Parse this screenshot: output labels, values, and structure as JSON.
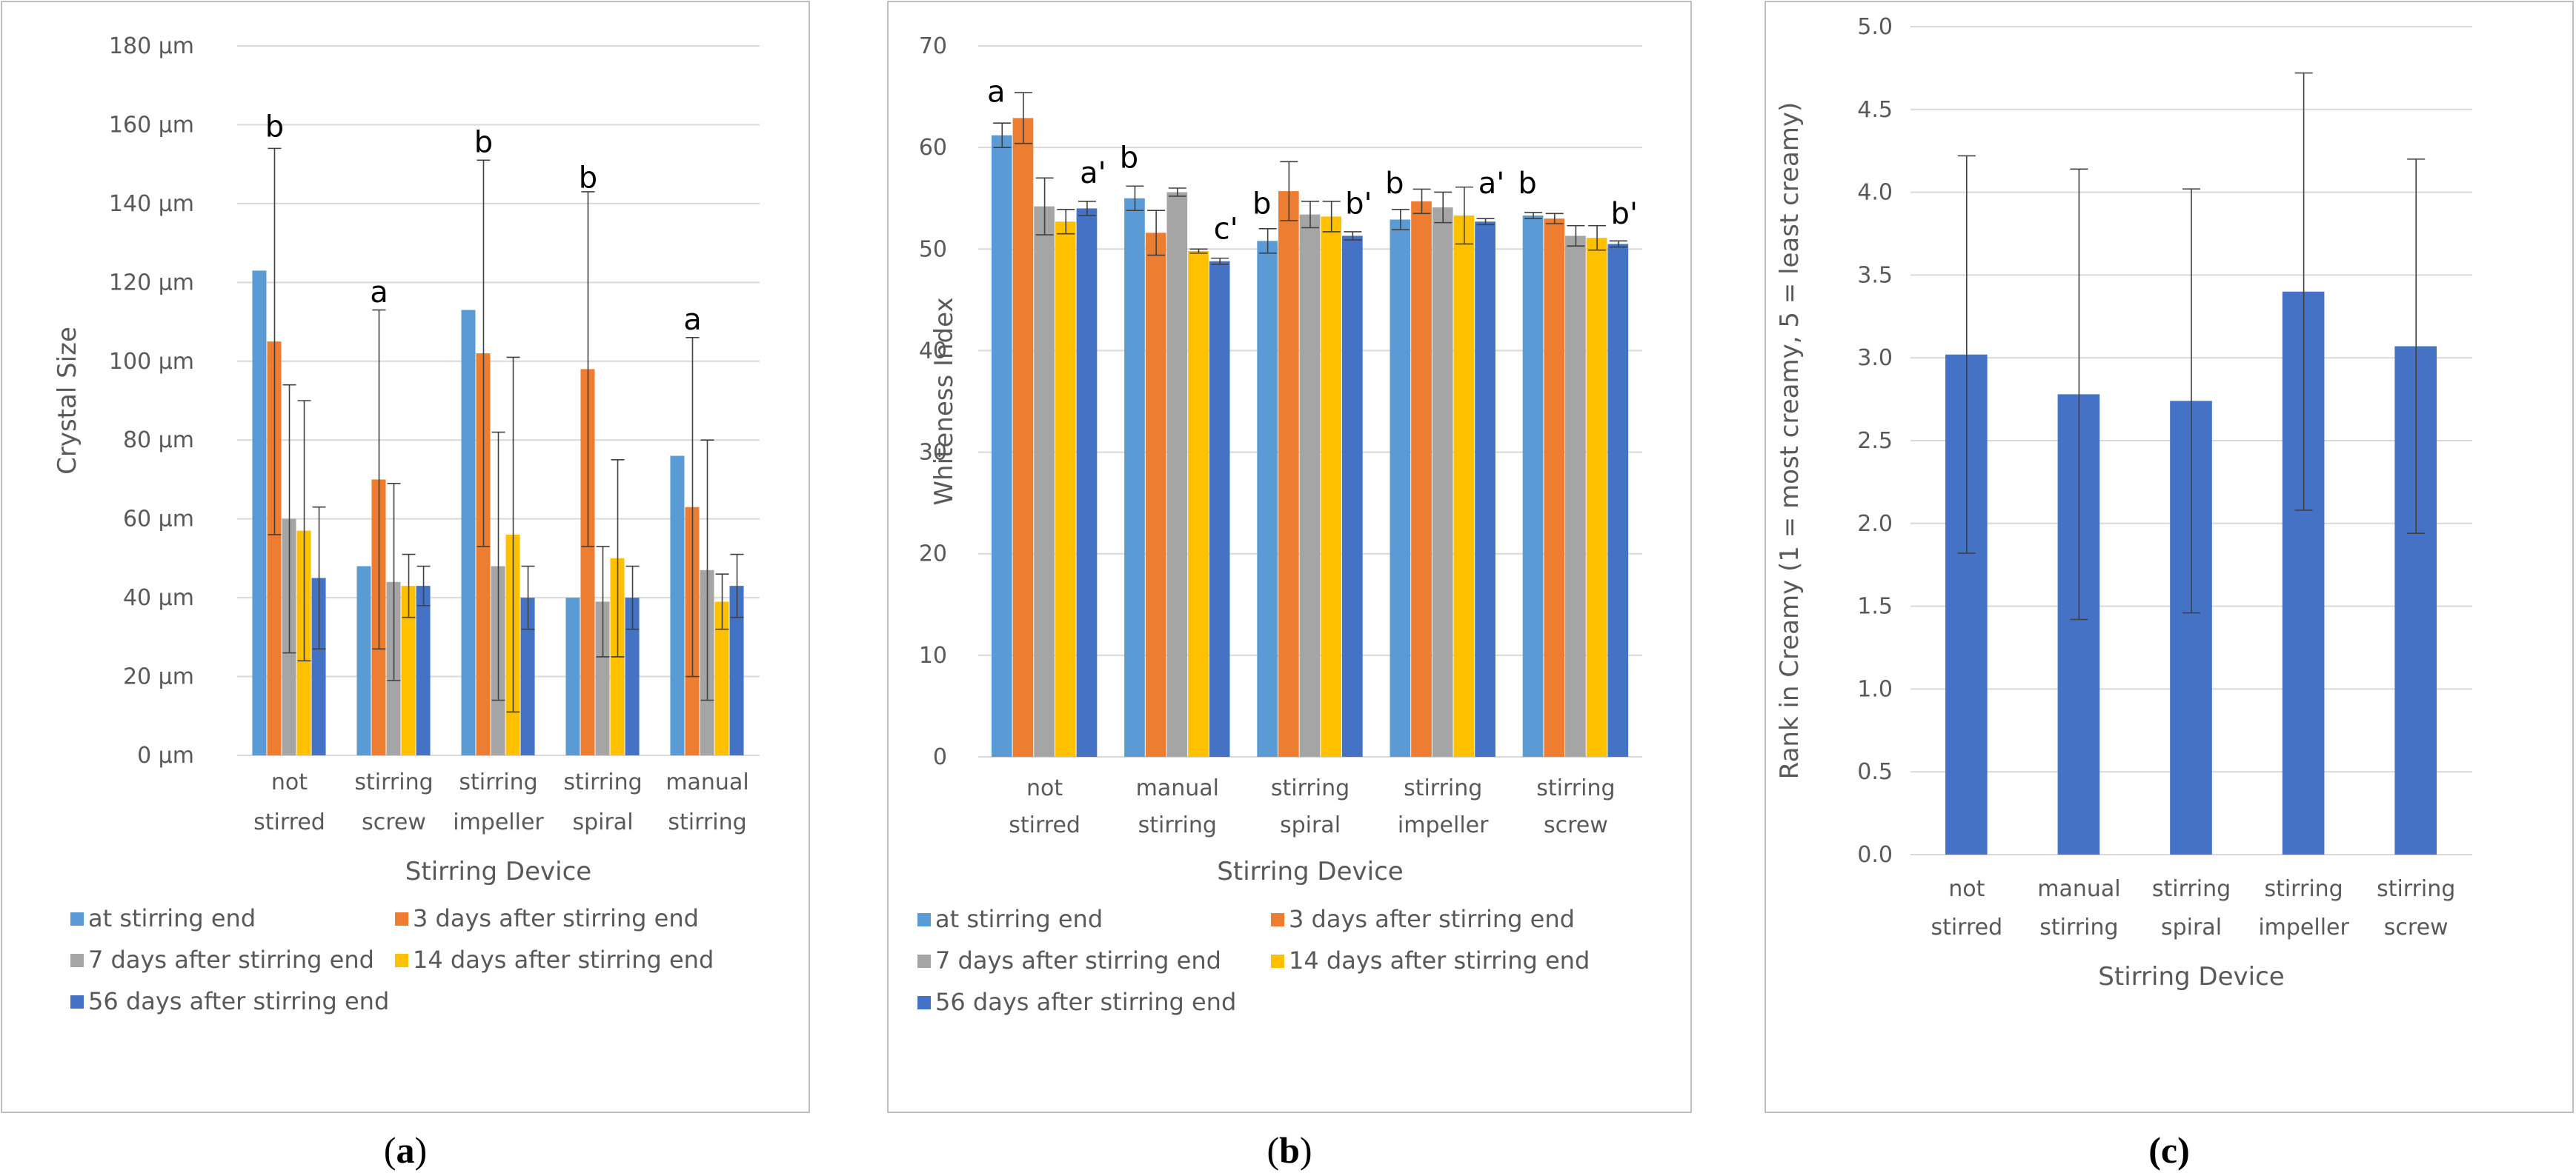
{
  "colors": {
    "series": [
      "#5b9bd5",
      "#ed7d31",
      "#a5a5a5",
      "#ffc000",
      "#4472c4"
    ],
    "single": "#4472c4",
    "grid": "#d9d9d9",
    "frame": "#bfbfbf",
    "error": "#404040",
    "text": "#595959"
  },
  "panels": {
    "a": {
      "paren_open": "(",
      "letter": "a",
      "paren_close": ")"
    },
    "b": {
      "paren_open": "(",
      "letter": "b",
      "paren_close": ")"
    },
    "c": {
      "text": "(c)"
    }
  },
  "chart_data": [
    {
      "id": "a",
      "type": "bar",
      "title": "",
      "xlabel": "Stirring Device",
      "ylabel": "Crystal Size",
      "ylim": [
        0,
        180
      ],
      "ytick_step": 20,
      "ytick_labels": [
        "0 µm",
        "20 µm",
        "40 µm",
        "60 µm",
        "80 µm",
        "100 µm",
        "120 µm",
        "140 µm",
        "160 µm",
        "180 µm"
      ],
      "categories": [
        [
          "not",
          "stirred"
        ],
        [
          "stirring",
          "screw"
        ],
        [
          "stirring",
          "impeller"
        ],
        [
          "stirring",
          "spiral"
        ],
        [
          "manual",
          "stirring"
        ]
      ],
      "legend_position": "bottom",
      "series": [
        {
          "name": "at stirring end",
          "values": [
            123,
            48,
            113,
            40,
            76
          ],
          "errors": [
            null,
            null,
            null,
            null,
            null
          ]
        },
        {
          "name": "3 days after stirring end",
          "values": [
            105,
            70,
            102,
            98,
            63
          ],
          "errors": [
            49,
            43,
            49,
            45,
            43
          ]
        },
        {
          "name": "7 days after stirring end",
          "values": [
            60,
            44,
            48,
            39,
            47
          ],
          "errors": [
            34,
            25,
            34,
            14,
            33
          ]
        },
        {
          "name": "14 days after stirring end",
          "values": [
            57,
            43,
            56,
            50,
            39
          ],
          "errors": [
            33,
            8,
            45,
            25,
            7
          ]
        },
        {
          "name": "56 days after stirring end",
          "values": [
            45,
            43,
            40,
            40,
            43
          ],
          "errors": [
            18,
            5,
            8,
            8,
            8
          ]
        }
      ],
      "annotations": [
        {
          "category": 0,
          "label": "b",
          "y": 157
        },
        {
          "category": 1,
          "label": "a",
          "y": 115
        },
        {
          "category": 2,
          "label": "b",
          "y": 153
        },
        {
          "category": 3,
          "label": "b",
          "y": 144
        },
        {
          "category": 4,
          "label": "a",
          "y": 108
        }
      ]
    },
    {
      "id": "b",
      "type": "bar",
      "title": "",
      "xlabel": "Stirring Device",
      "ylabel": "Whiteness Index",
      "ylim": [
        0,
        70
      ],
      "ytick_step": 10,
      "ytick_labels": [
        "0",
        "10",
        "20",
        "30",
        "40",
        "50",
        "60",
        "70"
      ],
      "categories": [
        [
          "not",
          "stirred"
        ],
        [
          "manual",
          "stirring"
        ],
        [
          "stirring",
          "spiral"
        ],
        [
          "stirring",
          "impeller"
        ],
        [
          "stirring",
          "screw"
        ]
      ],
      "legend_position": "bottom",
      "series": [
        {
          "name": "at stirring end",
          "values": [
            61.2,
            55.0,
            50.8,
            52.9,
            53.3
          ],
          "errors": [
            1.2,
            1.2,
            1.2,
            1.0,
            0.3
          ]
        },
        {
          "name": "3 days after stirring end",
          "values": [
            62.9,
            51.6,
            55.7,
            54.7,
            53.0
          ],
          "errors": [
            2.5,
            2.2,
            2.9,
            1.2,
            0.5
          ]
        },
        {
          "name": "7 days after stirring end",
          "values": [
            54.2,
            55.6,
            53.4,
            54.1,
            51.3
          ],
          "errors": [
            2.8,
            0.4,
            1.3,
            1.5,
            1.0
          ]
        },
        {
          "name": "14 days after stirring end",
          "values": [
            52.7,
            49.8,
            53.2,
            53.3,
            51.1
          ],
          "errors": [
            1.2,
            0.2,
            1.5,
            2.8,
            1.2
          ]
        },
        {
          "name": "56 days after stirring end",
          "values": [
            54.0,
            48.8,
            51.3,
            52.7,
            50.5
          ],
          "errors": [
            0.7,
            0.3,
            0.4,
            0.3,
            0.3
          ]
        }
      ],
      "annotations": [
        {
          "category": 0,
          "series": 0,
          "label": "a",
          "y": 64.5
        },
        {
          "category": 0,
          "series": 4,
          "label": "a'",
          "y": 56.5
        },
        {
          "category": 1,
          "series": 0,
          "label": "b",
          "y": 58.0
        },
        {
          "category": 1,
          "series": 4,
          "label": "c'",
          "y": 51.0
        },
        {
          "category": 2,
          "series": 0,
          "label": "b",
          "y": 53.5
        },
        {
          "category": 2,
          "series": 4,
          "label": "b'",
          "y": 53.5
        },
        {
          "category": 3,
          "series": 0,
          "label": "b",
          "y": 55.5
        },
        {
          "category": 3,
          "series": 4,
          "label": "a'",
          "y": 55.5
        },
        {
          "category": 4,
          "series": 0,
          "label": "b",
          "y": 55.5
        },
        {
          "category": 4,
          "series": 4,
          "label": "b'",
          "y": 52.5
        }
      ]
    },
    {
      "id": "c",
      "type": "bar",
      "title": "",
      "xlabel": "Stirring Device",
      "ylabel": "Rank in Creamy (1 = most creamy, 5 = least creamy)",
      "ylim": [
        0,
        5
      ],
      "ytick_step": 0.5,
      "ytick_labels": [
        "0.0",
        "0.5",
        "1.0",
        "1.5",
        "2.0",
        "2.5",
        "3.0",
        "3.5",
        "4.0",
        "4.5",
        "5.0"
      ],
      "categories": [
        [
          "not",
          "stirred"
        ],
        [
          "manual",
          "stirring"
        ],
        [
          "stirring",
          "spiral"
        ],
        [
          "stirring",
          "impeller"
        ],
        [
          "stirring",
          "screw"
        ]
      ],
      "series": [
        {
          "name": "Rank in Creamy",
          "values": [
            3.02,
            2.78,
            2.74,
            3.4,
            3.07
          ],
          "errors": [
            1.2,
            1.36,
            1.28,
            1.32,
            1.13
          ]
        }
      ]
    }
  ]
}
